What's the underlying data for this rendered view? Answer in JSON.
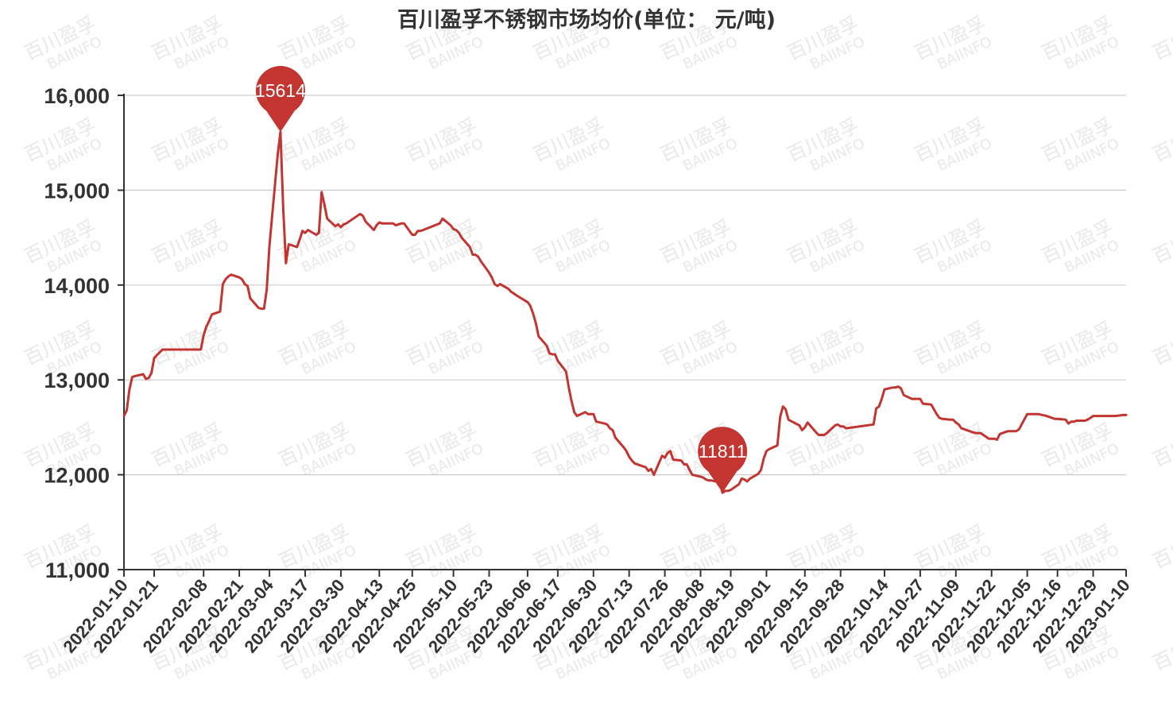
{
  "watermark": {
    "line1": "百川盈孚",
    "line2": "BAIINFO"
  },
  "chart_data": {
    "type": "line",
    "title": "百川盈孚不锈钢市场均价(单位：  元/吨)",
    "xlabel": "",
    "ylabel": "",
    "ylim": [
      11000,
      16000
    ],
    "yticks": [
      11000,
      12000,
      13000,
      14000,
      15000,
      16000
    ],
    "ytick_labels": [
      "11,000",
      "12,000",
      "13,000",
      "14,000",
      "15,000",
      "16,000"
    ],
    "xrange": [
      "2022-01-10",
      "2023-01-10"
    ],
    "xtick_labels": [
      "2022-01-10",
      "2022-01-21",
      "2022-02-08",
      "2022-02-21",
      "2022-03-04",
      "2022-03-17",
      "2022-03-30",
      "2022-04-13",
      "2022-04-25",
      "2022-05-10",
      "2022-05-23",
      "2022-06-06",
      "2022-06-17",
      "2022-06-30",
      "2022-07-13",
      "2022-07-26",
      "2022-08-08",
      "2022-08-19",
      "2022-09-01",
      "2022-09-15",
      "2022-09-28",
      "2022-10-14",
      "2022-10-27",
      "2022-11-09",
      "2022-11-22",
      "2022-12-05",
      "2022-12-16",
      "2022-12-29",
      "2023-01-10"
    ],
    "grid": "horizontal",
    "line_color": "#c23531",
    "series": [
      {
        "points": [
          [
            "2022-01-10",
            12620
          ],
          [
            "2022-01-11",
            12680
          ],
          [
            "2022-01-12",
            12900
          ],
          [
            "2022-01-13",
            13030
          ],
          [
            "2022-01-14",
            13040
          ],
          [
            "2022-01-17",
            13060
          ],
          [
            "2022-01-18",
            13010
          ],
          [
            "2022-01-19",
            13020
          ],
          [
            "2022-01-20",
            13070
          ],
          [
            "2022-01-21",
            13230
          ],
          [
            "2022-01-24",
            13320
          ],
          [
            "2022-01-25",
            13320
          ],
          [
            "2022-01-26",
            13320
          ],
          [
            "2022-01-27",
            13320
          ],
          [
            "2022-01-28",
            13320
          ],
          [
            "2022-02-07",
            13320
          ],
          [
            "2022-02-08",
            13470
          ],
          [
            "2022-02-09",
            13560
          ],
          [
            "2022-02-10",
            13620
          ],
          [
            "2022-02-11",
            13690
          ],
          [
            "2022-02-14",
            13720
          ],
          [
            "2022-02-15",
            14010
          ],
          [
            "2022-02-16",
            14060
          ],
          [
            "2022-02-17",
            14090
          ],
          [
            "2022-02-18",
            14110
          ],
          [
            "2022-02-21",
            14080
          ],
          [
            "2022-02-22",
            14060
          ],
          [
            "2022-02-23",
            14010
          ],
          [
            "2022-02-24",
            13990
          ],
          [
            "2022-02-25",
            13860
          ],
          [
            "2022-02-28",
            13760
          ],
          [
            "2022-03-01",
            13750
          ],
          [
            "2022-03-02",
            13750
          ],
          [
            "2022-03-03",
            13950
          ],
          [
            "2022-03-04",
            14420
          ],
          [
            "2022-03-07",
            15380
          ],
          [
            "2022-03-08",
            15614
          ],
          [
            "2022-03-09",
            14800
          ],
          [
            "2022-03-10",
            14230
          ],
          [
            "2022-03-11",
            14430
          ],
          [
            "2022-03-14",
            14400
          ],
          [
            "2022-03-15",
            14480
          ],
          [
            "2022-03-16",
            14570
          ],
          [
            "2022-03-17",
            14550
          ],
          [
            "2022-03-18",
            14580
          ],
          [
            "2022-03-21",
            14530
          ],
          [
            "2022-03-22",
            14550
          ],
          [
            "2022-03-23",
            14980
          ],
          [
            "2022-03-24",
            14850
          ],
          [
            "2022-03-25",
            14700
          ],
          [
            "2022-03-28",
            14620
          ],
          [
            "2022-03-29",
            14640
          ],
          [
            "2022-03-30",
            14610
          ],
          [
            "2022-03-31",
            14640
          ],
          [
            "2022-04-01",
            14650
          ],
          [
            "2022-04-06",
            14750
          ],
          [
            "2022-04-07",
            14730
          ],
          [
            "2022-04-08",
            14670
          ],
          [
            "2022-04-11",
            14580
          ],
          [
            "2022-04-12",
            14630
          ],
          [
            "2022-04-13",
            14660
          ],
          [
            "2022-04-14",
            14650
          ],
          [
            "2022-04-15",
            14650
          ],
          [
            "2022-04-18",
            14650
          ],
          [
            "2022-04-19",
            14630
          ],
          [
            "2022-04-20",
            14640
          ],
          [
            "2022-04-21",
            14650
          ],
          [
            "2022-04-22",
            14650
          ],
          [
            "2022-04-25",
            14530
          ],
          [
            "2022-04-26",
            14530
          ],
          [
            "2022-04-27",
            14570
          ],
          [
            "2022-04-28",
            14570
          ],
          [
            "2022-04-29",
            14580
          ],
          [
            "2022-05-05",
            14650
          ],
          [
            "2022-05-06",
            14700
          ],
          [
            "2022-05-09",
            14630
          ],
          [
            "2022-05-10",
            14590
          ],
          [
            "2022-05-11",
            14580
          ],
          [
            "2022-05-12",
            14550
          ],
          [
            "2022-05-13",
            14500
          ],
          [
            "2022-05-16",
            14400
          ],
          [
            "2022-05-17",
            14320
          ],
          [
            "2022-05-18",
            14320
          ],
          [
            "2022-05-19",
            14300
          ],
          [
            "2022-05-20",
            14250
          ],
          [
            "2022-05-23",
            14130
          ],
          [
            "2022-05-24",
            14080
          ],
          [
            "2022-05-25",
            14010
          ],
          [
            "2022-05-26",
            13990
          ],
          [
            "2022-05-27",
            14010
          ],
          [
            "2022-05-30",
            13960
          ],
          [
            "2022-05-31",
            13930
          ],
          [
            "2022-06-01",
            13910
          ],
          [
            "2022-06-02",
            13890
          ],
          [
            "2022-06-06",
            13820
          ],
          [
            "2022-06-07",
            13780
          ],
          [
            "2022-06-08",
            13700
          ],
          [
            "2022-06-09",
            13600
          ],
          [
            "2022-06-10",
            13460
          ],
          [
            "2022-06-13",
            13360
          ],
          [
            "2022-06-14",
            13280
          ],
          [
            "2022-06-15",
            13270
          ],
          [
            "2022-06-16",
            13270
          ],
          [
            "2022-06-17",
            13200
          ],
          [
            "2022-06-20",
            13090
          ],
          [
            "2022-06-21",
            12920
          ],
          [
            "2022-06-22",
            12780
          ],
          [
            "2022-06-23",
            12660
          ],
          [
            "2022-06-24",
            12620
          ],
          [
            "2022-06-27",
            12660
          ],
          [
            "2022-06-28",
            12640
          ],
          [
            "2022-06-29",
            12640
          ],
          [
            "2022-06-30",
            12640
          ],
          [
            "2022-07-01",
            12560
          ],
          [
            "2022-07-04",
            12540
          ],
          [
            "2022-07-05",
            12530
          ],
          [
            "2022-07-06",
            12490
          ],
          [
            "2022-07-07",
            12470
          ],
          [
            "2022-07-08",
            12390
          ],
          [
            "2022-07-11",
            12290
          ],
          [
            "2022-07-12",
            12250
          ],
          [
            "2022-07-13",
            12190
          ],
          [
            "2022-07-14",
            12150
          ],
          [
            "2022-07-15",
            12120
          ],
          [
            "2022-07-18",
            12090
          ],
          [
            "2022-07-19",
            12080
          ],
          [
            "2022-07-20",
            12040
          ],
          [
            "2022-07-21",
            12060
          ],
          [
            "2022-07-22",
            12000
          ],
          [
            "2022-07-25",
            12200
          ],
          [
            "2022-07-26",
            12180
          ],
          [
            "2022-07-27",
            12230
          ],
          [
            "2022-07-28",
            12250
          ],
          [
            "2022-07-29",
            12160
          ],
          [
            "2022-08-01",
            12150
          ],
          [
            "2022-08-02",
            12110
          ],
          [
            "2022-08-03",
            12110
          ],
          [
            "2022-08-04",
            12050
          ],
          [
            "2022-08-05",
            12000
          ],
          [
            "2022-08-08",
            11980
          ],
          [
            "2022-08-09",
            11970
          ],
          [
            "2022-08-10",
            11950
          ],
          [
            "2022-08-11",
            11940
          ],
          [
            "2022-08-12",
            11940
          ],
          [
            "2022-08-15",
            11920
          ],
          [
            "2022-08-16",
            11811
          ],
          [
            "2022-08-17",
            11830
          ],
          [
            "2022-08-18",
            11830
          ],
          [
            "2022-08-19",
            11840
          ],
          [
            "2022-08-22",
            11900
          ],
          [
            "2022-08-23",
            11960
          ],
          [
            "2022-08-24",
            11950
          ],
          [
            "2022-08-25",
            11930
          ],
          [
            "2022-08-26",
            11960
          ],
          [
            "2022-08-29",
            12010
          ],
          [
            "2022-08-30",
            12050
          ],
          [
            "2022-08-31",
            12170
          ],
          [
            "2022-09-01",
            12250
          ],
          [
            "2022-09-02",
            12270
          ],
          [
            "2022-09-05",
            12310
          ],
          [
            "2022-09-06",
            12610
          ],
          [
            "2022-09-07",
            12720
          ],
          [
            "2022-09-08",
            12690
          ],
          [
            "2022-09-09",
            12580
          ],
          [
            "2022-09-13",
            12520
          ],
          [
            "2022-09-14",
            12470
          ],
          [
            "2022-09-15",
            12500
          ],
          [
            "2022-09-16",
            12550
          ],
          [
            "2022-09-19",
            12450
          ],
          [
            "2022-09-20",
            12420
          ],
          [
            "2022-09-21",
            12420
          ],
          [
            "2022-09-22",
            12420
          ],
          [
            "2022-09-23",
            12440
          ],
          [
            "2022-09-26",
            12520
          ],
          [
            "2022-09-27",
            12530
          ],
          [
            "2022-09-28",
            12510
          ],
          [
            "2022-09-29",
            12510
          ],
          [
            "2022-09-30",
            12490
          ],
          [
            "2022-10-10",
            12530
          ],
          [
            "2022-10-11",
            12700
          ],
          [
            "2022-10-12",
            12720
          ],
          [
            "2022-10-13",
            12800
          ],
          [
            "2022-10-14",
            12900
          ],
          [
            "2022-10-17",
            12920
          ],
          [
            "2022-10-18",
            12920
          ],
          [
            "2022-10-19",
            12930
          ],
          [
            "2022-10-20",
            12910
          ],
          [
            "2022-10-21",
            12840
          ],
          [
            "2022-10-24",
            12800
          ],
          [
            "2022-10-25",
            12800
          ],
          [
            "2022-10-26",
            12800
          ],
          [
            "2022-10-27",
            12800
          ],
          [
            "2022-10-28",
            12750
          ],
          [
            "2022-10-31",
            12740
          ],
          [
            "2022-11-01",
            12690
          ],
          [
            "2022-11-02",
            12640
          ],
          [
            "2022-11-03",
            12600
          ],
          [
            "2022-11-04",
            12590
          ],
          [
            "2022-11-07",
            12580
          ],
          [
            "2022-11-08",
            12580
          ],
          [
            "2022-11-09",
            12550
          ],
          [
            "2022-11-10",
            12530
          ],
          [
            "2022-11-11",
            12490
          ],
          [
            "2022-11-14",
            12460
          ],
          [
            "2022-11-15",
            12450
          ],
          [
            "2022-11-16",
            12440
          ],
          [
            "2022-11-17",
            12440
          ],
          [
            "2022-11-18",
            12440
          ],
          [
            "2022-11-21",
            12380
          ],
          [
            "2022-11-22",
            12380
          ],
          [
            "2022-11-23",
            12380
          ],
          [
            "2022-11-24",
            12370
          ],
          [
            "2022-11-25",
            12430
          ],
          [
            "2022-11-28",
            12460
          ],
          [
            "2022-11-29",
            12460
          ],
          [
            "2022-11-30",
            12460
          ],
          [
            "2022-12-01",
            12460
          ],
          [
            "2022-12-02",
            12480
          ],
          [
            "2022-12-05",
            12640
          ],
          [
            "2022-12-06",
            12640
          ],
          [
            "2022-12-07",
            12640
          ],
          [
            "2022-12-08",
            12640
          ],
          [
            "2022-12-09",
            12640
          ],
          [
            "2022-12-12",
            12620
          ],
          [
            "2022-12-13",
            12610
          ],
          [
            "2022-12-14",
            12600
          ],
          [
            "2022-12-15",
            12590
          ],
          [
            "2022-12-16",
            12590
          ],
          [
            "2022-12-19",
            12580
          ],
          [
            "2022-12-20",
            12540
          ],
          [
            "2022-12-21",
            12560
          ],
          [
            "2022-12-22",
            12560
          ],
          [
            "2022-12-23",
            12570
          ],
          [
            "2022-12-26",
            12570
          ],
          [
            "2022-12-27",
            12580
          ],
          [
            "2022-12-28",
            12600
          ],
          [
            "2022-12-29",
            12620
          ],
          [
            "2022-12-30",
            12620
          ],
          [
            "2023-01-03",
            12620
          ],
          [
            "2023-01-04",
            12620
          ],
          [
            "2023-01-05",
            12620
          ],
          [
            "2023-01-06",
            12620
          ],
          [
            "2023-01-09",
            12630
          ],
          [
            "2023-01-10",
            12630
          ]
        ]
      }
    ],
    "annotations": [
      {
        "type": "max",
        "label": "15614",
        "x": "2022-03-08",
        "y": 15614
      },
      {
        "type": "min",
        "label": "11811",
        "x": "2022-08-16",
        "y": 11811
      }
    ]
  }
}
